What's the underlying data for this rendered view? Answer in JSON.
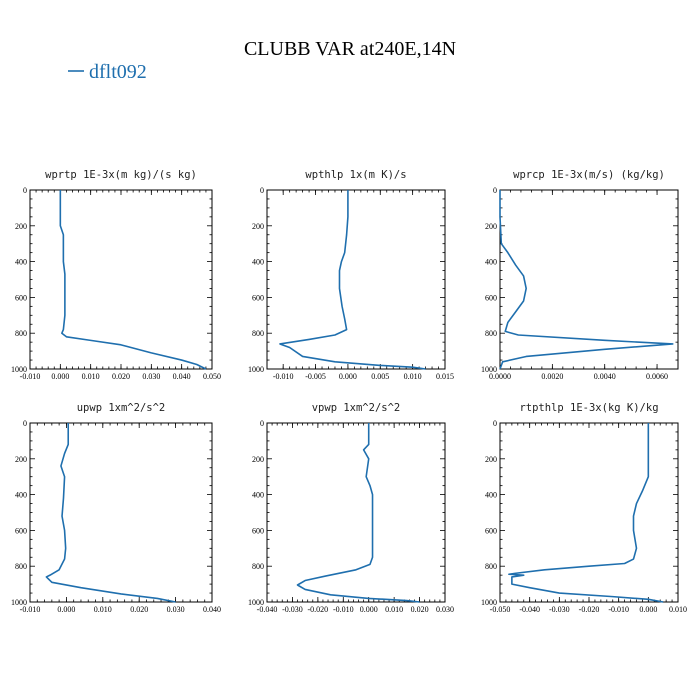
{
  "title": "CLUBB VAR at240E,14N",
  "legend": {
    "label": "dflt092",
    "color": "#1f6fae"
  },
  "chart_data": [
    {
      "type": "line",
      "title": "wprtp  1E-3x(m kg)/(s kg)",
      "ylim": [
        1000,
        0
      ],
      "xlim": [
        -0.01,
        0.05
      ],
      "yticks": [
        "0",
        "200",
        "400",
        "600",
        "800",
        "1000"
      ],
      "xticks": [
        "-0.010",
        "0.000",
        "0.010",
        "0.020",
        "0.030",
        "0.040",
        "0.050"
      ],
      "series": [
        {
          "points": [
            [
              0,
              0
            ],
            [
              0,
              200
            ],
            [
              0.001,
              250
            ],
            [
              0.001,
              400
            ],
            [
              0.0015,
              470
            ],
            [
              0.0015,
              550
            ],
            [
              0.0015,
              700
            ],
            [
              0.001,
              780
            ],
            [
              0.0005,
              800
            ],
            [
              0.002,
              820
            ],
            [
              0.01,
              840
            ],
            [
              0.02,
              865
            ],
            [
              0.03,
              910
            ],
            [
              0.04,
              950
            ],
            [
              0.045,
              975
            ],
            [
              0.048,
              1000
            ]
          ]
        }
      ]
    },
    {
      "type": "line",
      "title": "wpthlp  1x(m K)/s",
      "ylim": [
        1000,
        0
      ],
      "xlim": [
        -0.0125,
        0.015
      ],
      "yticks": [
        "0",
        "200",
        "400",
        "600",
        "800",
        "1000"
      ],
      "xticks": [
        "-0.010",
        "-0.005",
        "0.000",
        "0.005",
        "0.010",
        "0.015"
      ],
      "series": [
        {
          "points": [
            [
              0,
              0
            ],
            [
              0,
              150
            ],
            [
              -0.0002,
              250
            ],
            [
              -0.0005,
              350
            ],
            [
              -0.001,
              400
            ],
            [
              -0.0013,
              450
            ],
            [
              -0.0013,
              550
            ],
            [
              -0.0009,
              650
            ],
            [
              -0.0005,
              720
            ],
            [
              -0.0002,
              780
            ],
            [
              -0.002,
              810
            ],
            [
              -0.006,
              835
            ],
            [
              -0.0105,
              860
            ],
            [
              -0.009,
              880
            ],
            [
              -0.007,
              930
            ],
            [
              -0.002,
              960
            ],
            [
              0.005,
              980
            ],
            [
              0.01,
              990
            ],
            [
              0.012,
              1000
            ]
          ]
        }
      ]
    },
    {
      "type": "line",
      "title": "wprcp  1E-3x(m/s) (kg/kg)",
      "ylim": [
        1000,
        0
      ],
      "xlim": [
        0,
        0.0068
      ],
      "yticks": [
        "0",
        "200",
        "400",
        "600",
        "800",
        "1000"
      ],
      "xticks": [
        "0.0000",
        "0.0020",
        "0.0040",
        "0.0060"
      ],
      "series": [
        {
          "points": [
            [
              0,
              0
            ],
            [
              0,
              150
            ],
            [
              5e-05,
              300
            ],
            [
              0.0003,
              350
            ],
            [
              0.0006,
              420
            ],
            [
              0.0009,
              480
            ],
            [
              0.001,
              550
            ],
            [
              0.0009,
              620
            ],
            [
              0.0006,
              680
            ],
            [
              0.0003,
              740
            ],
            [
              0.0002,
              790
            ],
            [
              0.0007,
              810
            ],
            [
              0.004,
              840
            ],
            [
              0.0066,
              860
            ],
            [
              0.004,
              890
            ],
            [
              0.001,
              930
            ],
            [
              0.0001,
              960
            ],
            [
              0,
              1000
            ]
          ]
        }
      ]
    },
    {
      "type": "line",
      "title": "upwp  1xm^2/s^2",
      "ylim": [
        1000,
        0
      ],
      "xlim": [
        -0.01,
        0.04
      ],
      "yticks": [
        "0",
        "200",
        "400",
        "600",
        "800",
        "1000"
      ],
      "xticks": [
        "-0.010",
        "0.000",
        "0.010",
        "0.020",
        "0.030",
        "0.040"
      ],
      "series": [
        {
          "points": [
            [
              0.0005,
              0
            ],
            [
              0.0005,
              120
            ],
            [
              -0.0005,
              170
            ],
            [
              -0.0015,
              240
            ],
            [
              -0.0005,
              300
            ],
            [
              -0.0008,
              420
            ],
            [
              -0.0012,
              520
            ],
            [
              -0.0005,
              600
            ],
            [
              -0.0002,
              700
            ],
            [
              -0.0005,
              760
            ],
            [
              -0.002,
              820
            ],
            [
              -0.0045,
              850
            ],
            [
              -0.0055,
              860
            ],
            [
              -0.004,
              890
            ],
            [
              0.004,
              920
            ],
            [
              0.015,
              955
            ],
            [
              0.025,
              980
            ],
            [
              0.03,
              1000
            ]
          ]
        }
      ]
    },
    {
      "type": "line",
      "title": "vpwp  1xm^2/s^2",
      "ylim": [
        1000,
        0
      ],
      "xlim": [
        -0.04,
        0.03
      ],
      "yticks": [
        "0",
        "200",
        "400",
        "600",
        "800",
        "1000"
      ],
      "xticks": [
        "-0.040",
        "-0.030",
        "-0.020",
        "-0.010",
        "0.000",
        "0.010",
        "0.020",
        "0.030"
      ],
      "series": [
        {
          "points": [
            [
              0,
              0
            ],
            [
              0,
              120
            ],
            [
              -0.002,
              150
            ],
            [
              0,
              200
            ],
            [
              -0.001,
              300
            ],
            [
              0.0005,
              350
            ],
            [
              0.0015,
              400
            ],
            [
              0.0015,
              600
            ],
            [
              0.0015,
              750
            ],
            [
              0.0005,
              790
            ],
            [
              -0.005,
              820
            ],
            [
              -0.017,
              855
            ],
            [
              -0.025,
              880
            ],
            [
              -0.028,
              905
            ],
            [
              -0.025,
              930
            ],
            [
              -0.015,
              960
            ],
            [
              0,
              980
            ],
            [
              0.015,
              992
            ],
            [
              0.02,
              1000
            ]
          ]
        }
      ]
    },
    {
      "type": "line",
      "title": "rtpthlp  1E-3x(kg K)/kg",
      "ylim": [
        1000,
        0
      ],
      "xlim": [
        -0.05,
        0.01
      ],
      "yticks": [
        "0",
        "200",
        "400",
        "600",
        "800",
        "1000"
      ],
      "xticks": [
        "-0.050",
        "-0.040",
        "-0.030",
        "-0.020",
        "-0.010",
        "0.000",
        "0.010"
      ],
      "series": [
        {
          "points": [
            [
              0,
              0
            ],
            [
              0,
              200
            ],
            [
              0,
              300
            ],
            [
              -0.002,
              380
            ],
            [
              -0.004,
              450
            ],
            [
              -0.005,
              520
            ],
            [
              -0.005,
              600
            ],
            [
              -0.004,
              700
            ],
            [
              -0.005,
              760
            ],
            [
              -0.008,
              785
            ],
            [
              -0.02,
              800
            ],
            [
              -0.035,
              820
            ],
            [
              -0.045,
              840
            ],
            [
              -0.047,
              845
            ],
            [
              -0.042,
              850
            ],
            [
              -0.046,
              860
            ],
            [
              -0.046,
              900
            ],
            [
              -0.04,
              920
            ],
            [
              -0.03,
              950
            ],
            [
              -0.012,
              970
            ],
            [
              0,
              985
            ],
            [
              0.005,
              1000
            ]
          ]
        }
      ]
    }
  ]
}
